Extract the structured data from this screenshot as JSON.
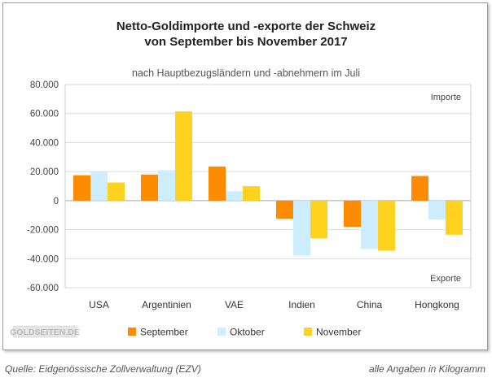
{
  "chart_data": {
    "type": "bar",
    "title_line1": "Netto-Goldimporte und -exporte der Schweiz",
    "title_line2": "von September bis November 2017",
    "subtitle": "nach Hauptbezugsländern und -abnehmern im Juli",
    "categories": [
      "USA",
      "Argentinien",
      "VAE",
      "Indien",
      "China",
      "Hongkong"
    ],
    "series": [
      {
        "name": "September",
        "color": "#FF8C00",
        "values": [
          17500,
          18000,
          23500,
          -12500,
          -18000,
          17000
        ]
      },
      {
        "name": "Oktober",
        "color": "#CCEEFF",
        "values": [
          20000,
          21000,
          6500,
          -38000,
          -33500,
          -13000
        ]
      },
      {
        "name": "November",
        "color": "#FFD21F",
        "values": [
          12500,
          61500,
          10000,
          -26000,
          -34500,
          -23500
        ]
      }
    ],
    "ylim": [
      -60000,
      80000
    ],
    "yticks": [
      80000,
      60000,
      40000,
      20000,
      0,
      -20000,
      -40000,
      -60000
    ],
    "ytick_labels": [
      "80.000",
      "60.000",
      "40.000",
      "20.000",
      "0",
      "-20.000",
      "-40.000",
      "-60.000"
    ],
    "annotation_top": "Importe",
    "annotation_bottom": "Exporte",
    "grid": true
  },
  "branding": {
    "logo_text": "GOLDSEITEN.DE"
  },
  "footer": {
    "source": "Quelle: Eidgenössische Zollverwaltung (EZV)",
    "units": "alle Angaben in Kilogramm"
  }
}
